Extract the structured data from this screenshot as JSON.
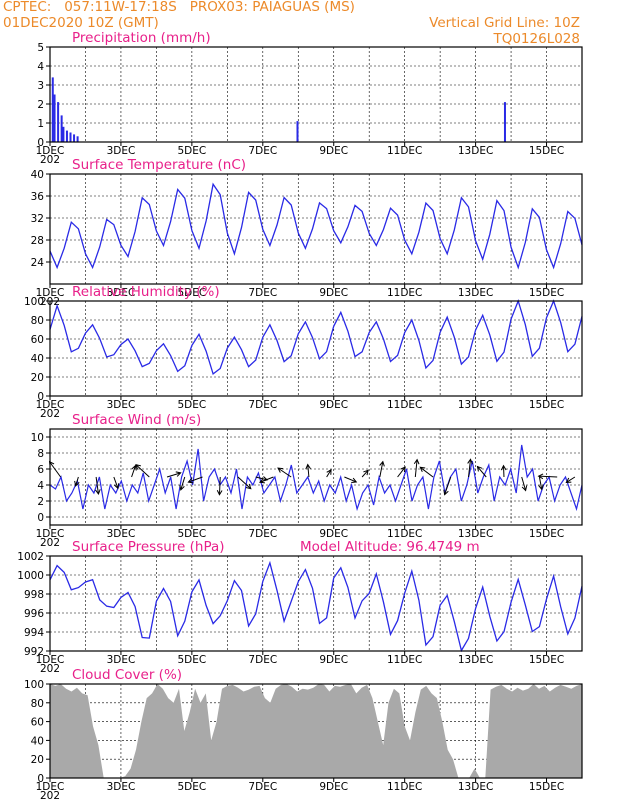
{
  "header": {
    "line1_left": "CPTEC:   057:11W-17:18S   PROX03: PAIAGUAS (MS)",
    "line2_left": "01DEC2020 10Z (GMT)",
    "line2_right": "Vertical Grid Line: 10Z",
    "line3_right": "TQ0126L028"
  },
  "colors": {
    "line": "#2a2ae6",
    "title": "#e8208a",
    "header": "#ec8a2a",
    "cloud": "#a9a9a9",
    "wind_arrow": "#000000"
  },
  "date_ticks": [
    "1DEC",
    "3DEC",
    "5DEC",
    "7DEC",
    "9DEC",
    "11DEC",
    "13DEC",
    "15DEC"
  ],
  "year_fragment": "202",
  "chart_data": [
    {
      "id": "precip",
      "type": "bar",
      "title": "Precipitation (mm/h)",
      "ylim": [
        0,
        5
      ],
      "yticks": [
        "0",
        "1",
        "2",
        "3",
        "4",
        "5"
      ],
      "bars": [
        [
          0.05,
          3.4
        ],
        [
          0.1,
          2.5
        ],
        [
          0.2,
          2.1
        ],
        [
          0.3,
          1.4
        ],
        [
          0.35,
          0.8
        ],
        [
          0.45,
          0.6
        ],
        [
          0.55,
          0.5
        ],
        [
          0.65,
          0.4
        ],
        [
          0.75,
          0.3
        ],
        [
          6.95,
          1.1
        ],
        [
          12.8,
          2.1
        ]
      ]
    },
    {
      "id": "temp",
      "type": "line",
      "title": "Surface Temperature (nC)",
      "ylim": [
        20,
        40
      ],
      "yticks": [
        "24",
        "28",
        "32",
        "36",
        "40"
      ],
      "min": [
        23,
        23,
        25,
        27,
        26.5,
        25.5,
        27,
        26.5,
        27.5,
        27,
        25.5,
        25.5,
        24.5,
        23,
        23,
        24.5,
        28
      ],
      "max": [
        31.5,
        32,
        36,
        37.5,
        38.5,
        37,
        36,
        35,
        34.5,
        34,
        35,
        36,
        35.5,
        34,
        33.5,
        34,
        33
      ]
    },
    {
      "id": "rh",
      "type": "line",
      "title": "Relative Humidity (%)",
      "ylim": [
        0,
        100
      ],
      "yticks": [
        "0",
        "20",
        "40",
        "60",
        "80",
        "100"
      ],
      "max": [
        95,
        75,
        60,
        55,
        65,
        62,
        75,
        78,
        88,
        78,
        80,
        83,
        85,
        100,
        100,
        100
      ],
      "min": [
        45,
        40,
        30,
        25,
        22,
        30,
        35,
        38,
        40,
        35,
        28,
        32,
        35,
        40,
        45,
        42
      ]
    },
    {
      "id": "wind",
      "type": "line",
      "title": "Surface Wind (m/s)",
      "ylim": [
        -1,
        11
      ],
      "yticks": [
        "0",
        "2",
        "4",
        "6",
        "8",
        "10"
      ],
      "speed": [
        4,
        3.5,
        5,
        2,
        3,
        4.5,
        1,
        4,
        3,
        5,
        1,
        4,
        3,
        4.5,
        2,
        4,
        3,
        5.5,
        2,
        4,
        6,
        3,
        5,
        1,
        5,
        7,
        4,
        8.5,
        2,
        5,
        6,
        4,
        5,
        3,
        6,
        1,
        5,
        4,
        5.5,
        3,
        4,
        5,
        2,
        4,
        6.5,
        3,
        4,
        5,
        3,
        4.5,
        2,
        4,
        3,
        5,
        2,
        4,
        1,
        3,
        4,
        1.5,
        5,
        3,
        4,
        2,
        4,
        6,
        2,
        4,
        5,
        1,
        5,
        7,
        3,
        5,
        6,
        2,
        4,
        7,
        3,
        5,
        6.5,
        2,
        5,
        4,
        6,
        3,
        9,
        5,
        6,
        2,
        4,
        5,
        2,
        4,
        5,
        3,
        1,
        4
      ]
    },
    {
      "id": "pres",
      "type": "line",
      "title": "Surface Pressure (hPa)",
      "extra": "Model Altitude: 96.4749 m",
      "ylim": [
        992,
        1002
      ],
      "yticks": [
        "992",
        "994",
        "996",
        "998",
        "1000",
        "1002"
      ],
      "max": [
        1001,
        999.5,
        998.5,
        999,
        1000,
        999.5,
        1001,
        1001,
        1001,
        999.5,
        1000,
        998.5,
        998,
        999,
        999.5,
        1000
      ],
      "min": [
        999,
        996,
        993,
        994,
        994,
        995,
        995.5,
        995,
        996,
        994,
        993,
        992,
        993,
        994,
        994,
        994
      ]
    },
    {
      "id": "cloud",
      "type": "area",
      "title": "Cloud Cover (%)",
      "ylim": [
        0,
        100
      ],
      "yticks": [
        "0",
        "20",
        "40",
        "60",
        "80",
        "100"
      ],
      "cover": [
        100,
        98,
        100,
        95,
        92,
        96,
        90,
        88,
        55,
        35,
        0,
        0,
        0,
        0,
        2,
        10,
        30,
        60,
        85,
        90,
        100,
        95,
        85,
        80,
        95,
        50,
        70,
        95,
        80,
        90,
        40,
        60,
        95,
        98,
        99,
        96,
        92,
        94,
        97,
        98,
        85,
        80,
        95,
        99,
        100,
        97,
        92,
        95,
        94,
        96,
        100,
        99,
        92,
        98,
        97,
        99,
        100,
        90,
        96,
        99,
        85,
        60,
        35,
        80,
        95,
        90,
        55,
        40,
        70,
        94,
        98,
        90,
        85,
        60,
        30,
        20,
        0,
        0,
        0,
        10,
        0,
        0,
        94,
        97,
        99,
        95,
        92,
        96,
        93,
        95,
        100,
        95,
        98,
        92,
        96,
        99,
        97,
        95,
        98,
        100
      ]
    }
  ]
}
